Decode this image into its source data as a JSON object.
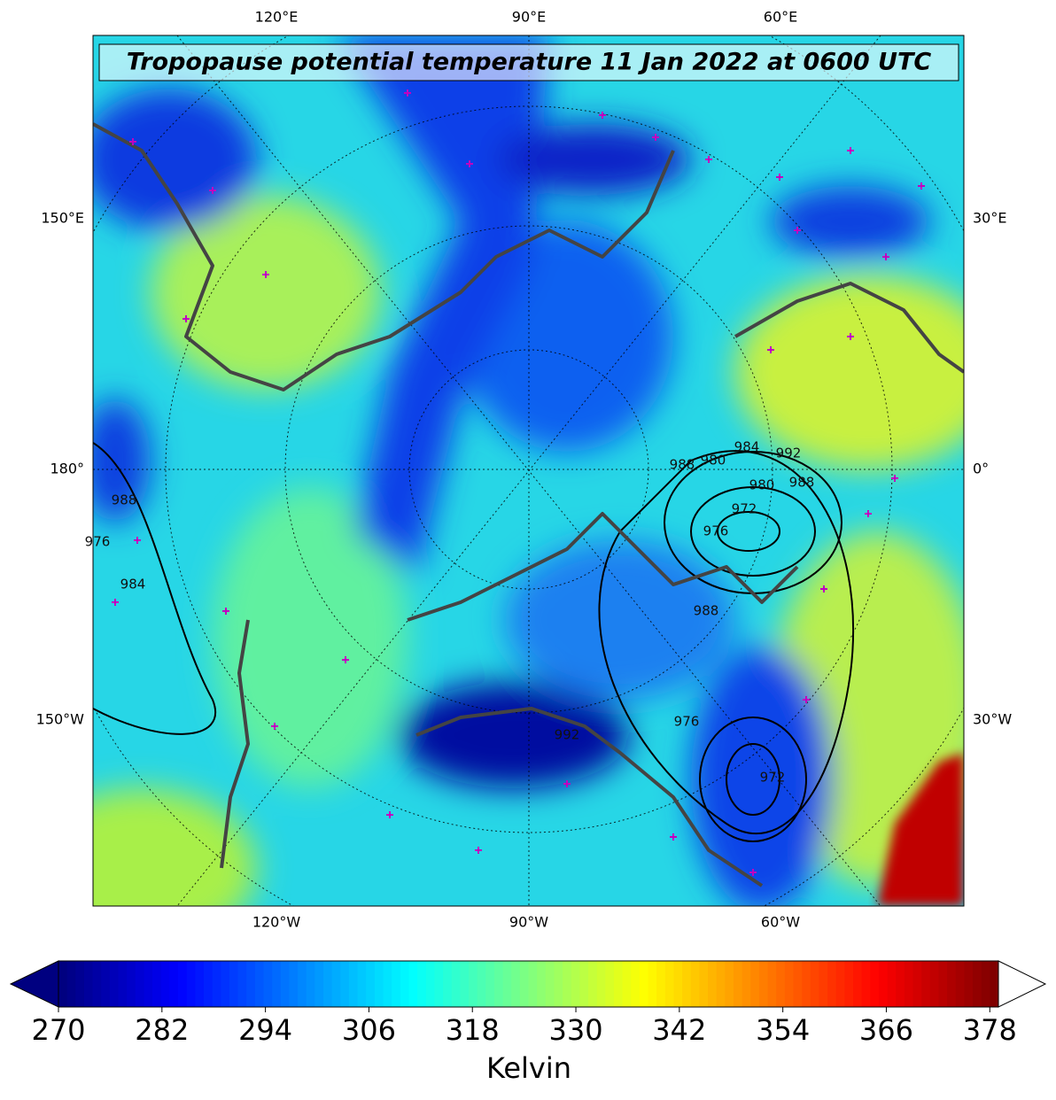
{
  "map": {
    "title": "Tropopause potential temperature 11 Jan 2022 at 0600 UTC",
    "lon_labels": {
      "top": [
        "120°E",
        "90°E",
        "60°E"
      ],
      "left": [
        "150°E",
        "180°",
        "150°W"
      ],
      "right": [
        "30°E",
        "0°",
        "30°W"
      ],
      "bottom": [
        "120°W",
        "90°W",
        "60°W"
      ]
    },
    "contour_labels": [
      "988",
      "976",
      "984",
      "988",
      "980",
      "984",
      "992",
      "988",
      "980",
      "972",
      "976",
      "988",
      "976",
      "972",
      "992"
    ]
  },
  "colorbar": {
    "label": "Kelvin",
    "range": [
      270,
      379
    ],
    "ticks": [
      270,
      282,
      294,
      306,
      318,
      330,
      342,
      354,
      366,
      378
    ],
    "colormap": "jet",
    "extend": "both"
  }
}
